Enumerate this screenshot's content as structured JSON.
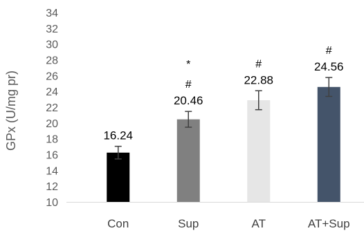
{
  "chart_data": {
    "type": "bar",
    "title": "",
    "xlabel": "",
    "ylabel": "GPx (U/mg pr)",
    "ylim": [
      10,
      34
    ],
    "ytick_step": 2,
    "yticks": [
      "10",
      "12",
      "14",
      "16",
      "18",
      "20",
      "22",
      "24",
      "26",
      "28",
      "30",
      "32",
      "34"
    ],
    "grid": false,
    "categories": [
      "Con",
      "Sup",
      "AT",
      "AT+Sup"
    ],
    "values": [
      16.24,
      20.46,
      22.88,
      24.56
    ],
    "value_labels": [
      "16.24",
      "20.46",
      "22.88",
      "24.56"
    ],
    "error": [
      0.8,
      1.0,
      1.2,
      1.2
    ],
    "significance": [
      [],
      [
        "*",
        "#"
      ],
      [
        "#"
      ],
      [
        "#"
      ]
    ],
    "colors": [
      "#000000",
      "#808080",
      "#e6e6e6",
      "#44546a"
    ],
    "axis_color": "#d9d9d9",
    "error_bar_color": "#404040"
  }
}
